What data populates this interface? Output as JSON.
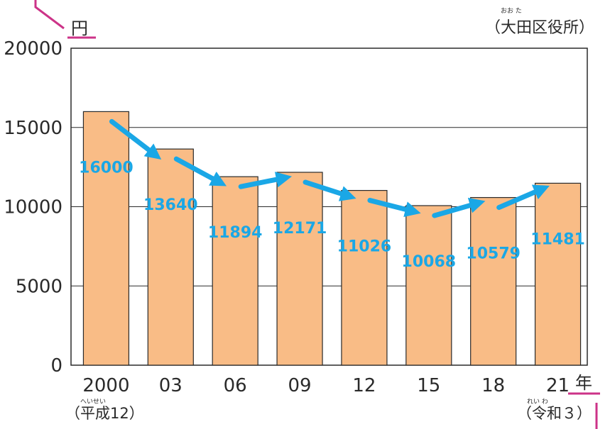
{
  "chart_data": {
    "type": "bar",
    "categories": [
      "2000",
      "03",
      "06",
      "09",
      "12",
      "15",
      "18",
      "21"
    ],
    "values": [
      16000,
      13640,
      11894,
      12171,
      11026,
      10068,
      10579,
      11481
    ],
    "data_labels": [
      "16000",
      "13640",
      "11894",
      "12171",
      "11026",
      "10068",
      "10579",
      "11481"
    ],
    "yticks": [
      "0",
      "5000",
      "10000",
      "15000",
      "20000"
    ],
    "ylim": [
      0,
      20000
    ],
    "ylabel": "円",
    "xlabel": "年",
    "source": "（大田区役所）",
    "source_ruby": "おお た",
    "first_x_note": "（平成12）",
    "first_x_note_ruby": "へいせい",
    "last_x_note": "（令和３）",
    "last_x_note_ruby": "れい わ",
    "grid": true,
    "colors": {
      "bar_fill": "#f9bc86",
      "bar_stroke": "#2a2a2a",
      "label": "#1aa7e6",
      "arrow": "#1aa7e6",
      "accent": "#cc3388"
    }
  }
}
